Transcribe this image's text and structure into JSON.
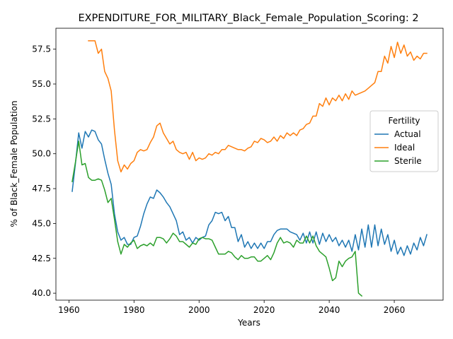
{
  "chart_data": {
    "type": "line",
    "title": "EXPENDITURE_FOR_MILITARY_Black_Female_Population_Scoring: 2",
    "xlabel": "Years",
    "ylabel": "% of Black_Female Population",
    "xlim": [
      1956,
      2075
    ],
    "ylim": [
      39.5,
      59.0
    ],
    "xticks": [
      1960,
      1980,
      2000,
      2020,
      2040,
      2060
    ],
    "yticks": [
      40.0,
      42.5,
      45.0,
      47.5,
      50.0,
      52.5,
      55.0,
      57.5
    ],
    "xtick_labels": [
      "1960",
      "1980",
      "2000",
      "2020",
      "2040",
      "2060"
    ],
    "ytick_labels": [
      "40.0",
      "42.5",
      "45.0",
      "47.5",
      "50.0",
      "52.5",
      "55.0",
      "57.5"
    ],
    "legend": {
      "title": "Fertility",
      "placement": "center-right"
    },
    "series": [
      {
        "name": "Actual",
        "color": "#1f77b4",
        "x": [
          1961,
          1962,
          1963,
          1964,
          1965,
          1966,
          1967,
          1968,
          1969,
          1970,
          1971,
          1972,
          1973,
          1974,
          1975,
          1976,
          1977,
          1978,
          1979,
          1980,
          1981,
          1982,
          1983,
          1984,
          1985,
          1986,
          1987,
          1988,
          1989,
          1990,
          1991,
          1992,
          1993,
          1994,
          1995,
          1996,
          1997,
          1998,
          1999,
          2000,
          2001,
          2002,
          2003,
          2004,
          2005,
          2006,
          2007,
          2008,
          2009,
          2010,
          2011,
          2012,
          2013,
          2014,
          2015,
          2016,
          2017,
          2018,
          2019,
          2020,
          2021,
          2022,
          2023,
          2024,
          2025,
          2026,
          2027,
          2028,
          2029,
          2030,
          2031,
          2032,
          2033,
          2034,
          2035,
          2036,
          2037,
          2038,
          2039,
          2040,
          2041,
          2042,
          2043,
          2044,
          2045,
          2046,
          2047,
          2048,
          2049,
          2050,
          2051,
          2052,
          2053,
          2054,
          2055,
          2056,
          2057,
          2058,
          2059,
          2060,
          2061,
          2062,
          2063,
          2064,
          2065,
          2066,
          2067,
          2068,
          2069,
          2070
        ],
        "y": [
          47.3,
          49.3,
          51.5,
          50.4,
          51.6,
          51.2,
          51.7,
          51.6,
          51.0,
          50.7,
          49.6,
          48.6,
          47.8,
          45.7,
          44.4,
          43.8,
          44.0,
          43.5,
          43.5,
          44.0,
          44.1,
          44.8,
          45.7,
          46.4,
          46.9,
          46.8,
          47.4,
          47.2,
          46.9,
          46.5,
          46.2,
          45.7,
          45.2,
          44.2,
          44.4,
          43.8,
          44.0,
          43.6,
          44.0,
          43.8,
          44.0,
          44.1,
          44.9,
          45.2,
          45.8,
          45.7,
          45.8,
          45.2,
          45.5,
          44.7,
          44.7,
          43.7,
          44.2,
          43.3,
          43.7,
          43.2,
          43.6,
          43.2,
          43.6,
          43.2,
          43.7,
          43.7,
          44.2,
          44.5,
          44.6,
          44.6,
          44.6,
          44.4,
          44.3,
          44.2,
          43.8,
          44.3,
          43.6,
          44.4,
          43.6,
          44.4,
          43.5,
          44.3,
          43.7,
          44.2,
          43.7,
          44.0,
          43.4,
          43.8,
          43.3,
          43.8,
          43.0,
          44.2,
          43.1,
          44.6,
          43.3,
          44.9,
          43.3,
          44.9,
          43.4,
          44.6,
          43.5,
          44.2,
          43.0,
          43.8,
          42.8,
          43.3,
          42.7,
          43.4,
          42.8,
          43.6,
          43.1,
          44.0,
          43.4,
          44.2
        ]
      },
      {
        "name": "Ideal",
        "color": "#ff7f0e",
        "x": [
          1966,
          1967,
          1968,
          1969,
          1970,
          1971,
          1972,
          1973,
          1974,
          1975,
          1976,
          1977,
          1978,
          1979,
          1980,
          1981,
          1982,
          1983,
          1984,
          1985,
          1986,
          1987,
          1988,
          1989,
          1990,
          1991,
          1992,
          1993,
          1994,
          1995,
          1996,
          1997,
          1998,
          1999,
          2000,
          2001,
          2002,
          2003,
          2004,
          2005,
          2006,
          2007,
          2008,
          2009,
          2010,
          2011,
          2012,
          2013,
          2014,
          2015,
          2016,
          2017,
          2018,
          2019,
          2020,
          2021,
          2022,
          2023,
          2024,
          2025,
          2026,
          2027,
          2028,
          2029,
          2030,
          2031,
          2032,
          2033,
          2034,
          2035,
          2036,
          2037,
          2038,
          2039,
          2040,
          2041,
          2042,
          2043,
          2044,
          2045,
          2046,
          2047,
          2048,
          2049,
          2050,
          2051,
          2052,
          2053,
          2054,
          2055,
          2056,
          2057,
          2058,
          2059,
          2060,
          2061,
          2062,
          2063,
          2064,
          2065,
          2066,
          2067,
          2068,
          2069,
          2070
        ],
        "y": [
          58.1,
          58.1,
          58.1,
          57.2,
          57.5,
          55.9,
          55.4,
          54.5,
          51.7,
          49.5,
          48.7,
          49.2,
          48.9,
          49.3,
          49.5,
          50.1,
          50.3,
          50.2,
          50.3,
          50.8,
          51.2,
          52.0,
          52.2,
          51.5,
          51.1,
          50.7,
          50.9,
          50.3,
          50.1,
          50.0,
          50.1,
          49.6,
          50.1,
          49.5,
          49.7,
          49.6,
          49.7,
          50.0,
          49.9,
          50.1,
          50.0,
          50.3,
          50.3,
          50.6,
          50.5,
          50.4,
          50.3,
          50.3,
          50.2,
          50.4,
          50.5,
          50.9,
          50.8,
          51.1,
          51.0,
          50.8,
          50.9,
          51.2,
          50.9,
          51.3,
          51.1,
          51.5,
          51.3,
          51.5,
          51.3,
          51.7,
          51.8,
          52.1,
          52.2,
          52.7,
          52.7,
          53.6,
          53.4,
          54.0,
          53.5,
          54.0,
          53.8,
          54.2,
          53.8,
          54.3,
          53.9,
          54.5,
          54.2,
          54.3,
          54.4,
          54.5,
          54.7,
          54.9,
          55.1,
          55.9,
          55.9,
          57.0,
          56.5,
          57.7,
          56.9,
          58.0,
          57.2,
          57.8,
          57.0,
          57.3,
          56.7,
          57.0,
          56.8,
          57.2,
          57.2
        ]
      },
      {
        "name": "Sterile",
        "color": "#2ca02c",
        "x": [
          1961,
          1962,
          1963,
          1964,
          1965,
          1966,
          1967,
          1968,
          1969,
          1970,
          1971,
          1972,
          1973,
          1974,
          1975,
          1976,
          1977,
          1978,
          1979,
          1980,
          1981,
          1982,
          1983,
          1984,
          1985,
          1986,
          1987,
          1988,
          1989,
          1990,
          1991,
          1992,
          1993,
          1994,
          1995,
          1996,
          1997,
          1998,
          1999,
          2000,
          2001,
          2002,
          2003,
          2004,
          2005,
          2006,
          2007,
          2008,
          2009,
          2010,
          2011,
          2012,
          2013,
          2014,
          2015,
          2016,
          2017,
          2018,
          2019,
          2020,
          2021,
          2022,
          2023,
          2024,
          2025,
          2026,
          2027,
          2028,
          2029,
          2030,
          2031,
          2032,
          2033,
          2034,
          2035,
          2036,
          2037,
          2038,
          2039,
          2040,
          2041,
          2042,
          2043,
          2044,
          2045,
          2046,
          2047,
          2048,
          2049,
          2050
        ],
        "y": [
          48.0,
          49.4,
          50.9,
          49.2,
          49.3,
          48.3,
          48.1,
          48.1,
          48.2,
          48.1,
          47.4,
          46.5,
          46.8,
          45.3,
          43.7,
          42.8,
          43.5,
          43.3,
          43.6,
          43.8,
          43.2,
          43.4,
          43.5,
          43.4,
          43.6,
          43.4,
          44.0,
          44.0,
          43.9,
          43.6,
          43.9,
          44.3,
          44.1,
          43.7,
          43.7,
          43.5,
          43.3,
          43.6,
          43.5,
          43.9,
          44.0,
          43.9,
          43.9,
          43.8,
          43.3,
          42.8,
          42.8,
          42.8,
          43.0,
          42.9,
          42.6,
          42.4,
          42.7,
          42.5,
          42.5,
          42.6,
          42.6,
          42.3,
          42.3,
          42.5,
          42.7,
          42.4,
          42.9,
          43.6,
          44.0,
          43.6,
          43.7,
          43.6,
          43.3,
          43.8,
          43.6,
          43.6,
          44.1,
          43.6,
          44.1,
          43.4,
          43.0,
          42.8,
          42.6,
          41.8,
          40.9,
          41.1,
          42.3,
          41.9,
          42.3,
          42.5,
          42.6,
          43.0,
          40.0,
          39.8
        ]
      }
    ]
  }
}
